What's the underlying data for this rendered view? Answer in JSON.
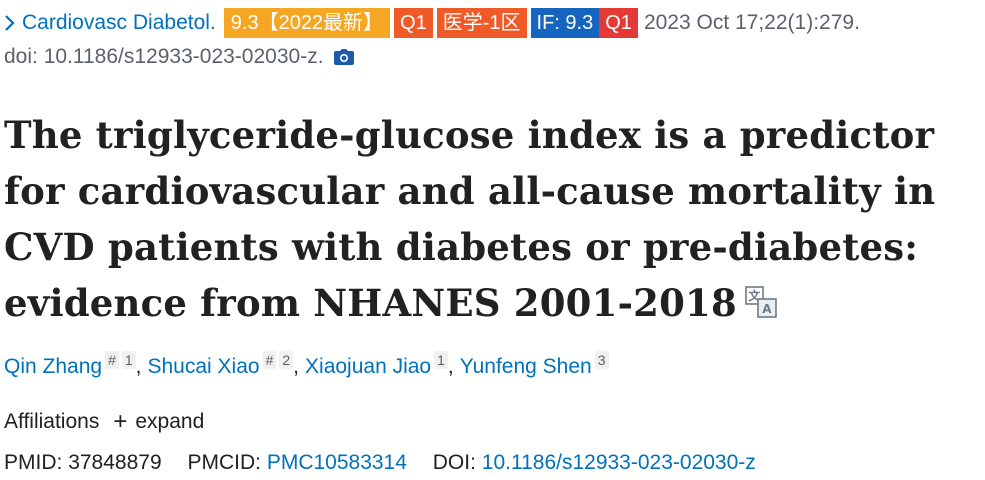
{
  "citation": {
    "journal": "Cardiovasc Diabetol.",
    "badges": {
      "impact_2022": "9.3【2022最新】",
      "quartile": "Q1",
      "category": "医学-1区",
      "if_label": "IF: 9.3",
      "if_quartile": "Q1"
    },
    "date_volume": "2023 Oct 17;22(1):279.",
    "doi_text": "doi: 10.1186/s12933-023-02030-z."
  },
  "title": "The triglyceride-glucose index is a predictor for cardiovascular and all-cause mortality in CVD patients with diabetes or pre-diabetes: evidence from NHANES 2001-2018",
  "authors": [
    {
      "name": "Qin Zhang",
      "marks": [
        "#",
        "1"
      ]
    },
    {
      "name": "Shucai Xiao",
      "marks": [
        "#",
        "2"
      ]
    },
    {
      "name": "Xiaojuan Jiao",
      "marks": [
        "1"
      ]
    },
    {
      "name": "Yunfeng Shen",
      "marks": [
        "3"
      ]
    }
  ],
  "affiliations": {
    "label": "Affiliations",
    "expand_label": "expand"
  },
  "identifiers": {
    "pmid_label": "PMID:",
    "pmid": "37848879",
    "pmcid_label": "PMCID:",
    "pmcid": "PMC10583314",
    "doi_label": "DOI:",
    "doi": "10.1186/s12933-023-02030-z"
  },
  "colors": {
    "link": "#0071bc",
    "badge_yellow": "#f5a623",
    "badge_orange": "#ef5a28",
    "badge_blue": "#1565c0",
    "badge_red": "#e53935"
  }
}
